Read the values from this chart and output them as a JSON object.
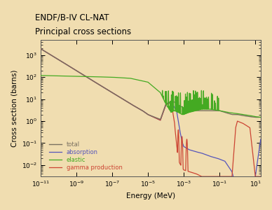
{
  "title_line1": "ENDF/B-IV CL-NAT",
  "title_line2": "Principal cross sections",
  "xlabel": "Energy (MeV)",
  "ylabel": "Cross section (barns)",
  "background_color": "#f0ddb0",
  "plot_bg_color": "#f0ddb0",
  "xmin": 1e-11,
  "xmax": 20,
  "ymin": 0.003,
  "ymax": 5000,
  "legend": [
    "total",
    "absorption",
    "elastic",
    "gamma production"
  ],
  "colors": {
    "total": "#7a7060",
    "absorption": "#5555bb",
    "elastic": "#44aa22",
    "gamma": "#cc4433"
  },
  "total_x": [
    1e-11,
    1e-10,
    1e-09,
    1e-08,
    1e-07,
    1e-06,
    5e-06,
    1e-05,
    5e-05,
    0.0001,
    0.0002,
    0.0003,
    0.0005,
    0.0008,
    0.001,
    0.002,
    0.005,
    0.01,
    0.02,
    0.05,
    0.1,
    0.2,
    0.5,
    1.0,
    2.0,
    5.0,
    10.0,
    20.0
  ],
  "total_y": [
    2000,
    640,
    200,
    63,
    20,
    6.3,
    3.0,
    2.0,
    1.2,
    6.0,
    8.0,
    7.5,
    5.0,
    4.5,
    4.0,
    3.5,
    3.0,
    3.0,
    3.0,
    3.0,
    3.0,
    2.5,
    2.0,
    2.0,
    1.8,
    1.6,
    1.5,
    1.5
  ],
  "abs_x": [
    1e-11,
    1e-10,
    1e-09,
    1e-08,
    1e-07,
    1e-06,
    5e-06,
    1e-05,
    5e-05,
    0.0001,
    0.0002,
    0.0004,
    0.0006,
    0.0008,
    0.001,
    0.002,
    0.005,
    0.01,
    0.03,
    0.08,
    0.2,
    0.5,
    1.0,
    2.0,
    5.0,
    10.0,
    20.0
  ],
  "abs_y": [
    2000,
    640,
    200,
    63,
    20,
    6.3,
    3.0,
    2.0,
    1.1,
    5.5,
    7.5,
    3.0,
    0.4,
    0.12,
    0.07,
    0.05,
    0.04,
    0.035,
    0.025,
    0.02,
    0.015,
    0.005,
    0.0005,
    0.0001,
    5e-05,
    0.003,
    0.15
  ],
  "elas_x": [
    1e-11,
    1e-10,
    1e-09,
    1e-08,
    1e-07,
    1e-06,
    1e-05,
    5e-05,
    0.0001,
    0.0002,
    0.0003,
    0.0005,
    0.0008,
    0.001,
    0.002,
    0.005,
    0.01,
    0.03,
    0.1,
    0.3,
    1.0,
    2.0,
    5.0,
    10.0,
    20.0
  ],
  "elas_y": [
    120,
    115,
    110,
    105,
    100,
    90,
    60,
    20,
    6.0,
    2.5,
    3.0,
    2.5,
    2.0,
    2.0,
    2.5,
    3.0,
    3.5,
    3.5,
    3.0,
    2.5,
    2.2,
    2.0,
    1.8,
    1.6,
    1.5
  ],
  "gam_x": [
    1e-11,
    1e-10,
    1e-09,
    1e-08,
    1e-07,
    1e-06,
    5e-06,
    1e-05,
    5e-05,
    0.0001,
    0.0002,
    0.0003,
    0.0004,
    0.0005,
    0.0006,
    0.0008,
    0.001,
    0.002,
    0.005,
    0.01,
    0.03,
    0.08,
    0.2,
    0.5,
    0.8,
    1.0,
    2.0,
    5.0,
    10.0,
    20.0
  ],
  "gam_y": [
    2000,
    640,
    200,
    63,
    20,
    6.3,
    3.0,
    2.0,
    1.1,
    5.5,
    7.5,
    0.9,
    0.09,
    0.018,
    0.012,
    0.008,
    0.006,
    0.005,
    0.004,
    0.003,
    0.003,
    0.003,
    0.003,
    0.003,
    0.5,
    1.0,
    0.8,
    0.5,
    0.003,
    0.003
  ]
}
